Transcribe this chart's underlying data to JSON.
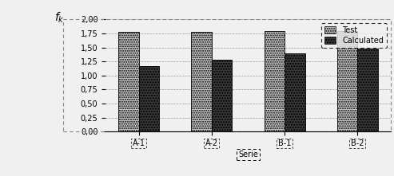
{
  "categories": [
    "A-1",
    "A-2",
    "B-1",
    "B-2"
  ],
  "test_values": [
    1.78,
    1.78,
    1.79,
    1.79
  ],
  "calculated_values": [
    1.17,
    1.28,
    1.4,
    1.48
  ],
  "xlabel": "Serie",
  "ylim": [
    0,
    2.0
  ],
  "yticks": [
    0.0,
    0.25,
    0.5,
    0.75,
    1.0,
    1.25,
    1.5,
    1.75,
    2.0
  ],
  "ytick_labels": [
    "0,00",
    "0,25",
    "0,50",
    "0,75",
    "1,00",
    "1,25",
    "1,50",
    "1,75",
    "2,00"
  ],
  "test_color": "#c8c8c8",
  "calculated_color": "#383838",
  "test_hatch": "......",
  "calculated_hatch": ".....",
  "legend_test": "Test",
  "legend_calculated": "Calculated",
  "bar_width": 0.28,
  "background_color": "#f0f0f0",
  "grid_color": "#999999",
  "dash_border_color": "#888888",
  "tick_fontsize": 7,
  "xlabel_fontsize": 7,
  "legend_fontsize": 7
}
